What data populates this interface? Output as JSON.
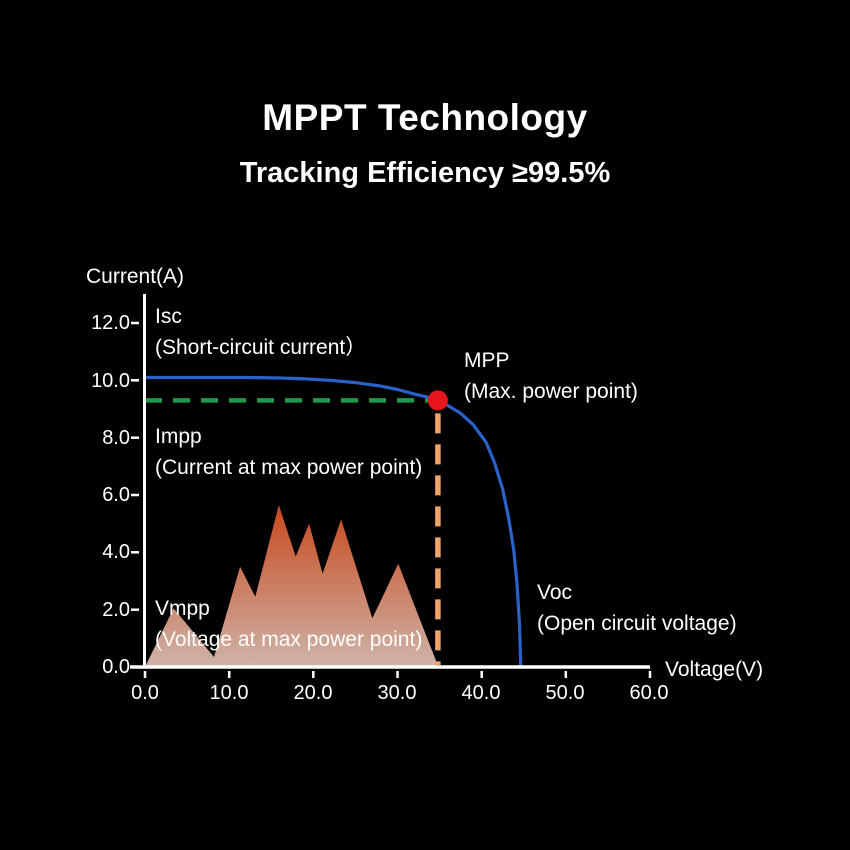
{
  "title": "MPPT Technology",
  "subtitle": "Tracking Efficiency ≥99.5%",
  "colors": {
    "background": "#000000",
    "text": "#ffffff",
    "axis": "#ffffff",
    "iv_curve": "#2b62c9",
    "impp_line": "#23984d",
    "vmpp_line": "#f2a465",
    "mpp_dot": "#e8151d",
    "mountain_top": "#c8481c",
    "mountain_bottom": "#ceb4a8"
  },
  "chart_data": {
    "type": "line",
    "title": "Solar module I-V curve with maximum power point",
    "xlabel": "Voltage(V)",
    "ylabel": "Current(A)",
    "xlim": [
      0,
      60
    ],
    "ylim": [
      0,
      12
    ],
    "x_ticks": [
      "0.0",
      "10.0",
      "20.0",
      "30.0",
      "40.0",
      "50.0",
      "60.0"
    ],
    "y_ticks": [
      "0.0",
      "2.0",
      "4.0",
      "6.0",
      "8.0",
      "10.0",
      "12.0"
    ],
    "grid": false,
    "legend": "none",
    "markers": {
      "isc": 10.1,
      "impp": 9.3,
      "vmpp": 34.8,
      "voc": 44.5,
      "mpp": [
        34.8,
        9.3
      ]
    },
    "series": [
      {
        "name": "iv_curve",
        "points": [
          [
            0,
            10.1
          ],
          [
            4,
            10.1
          ],
          [
            8,
            10.1
          ],
          [
            12,
            10.1
          ],
          [
            16,
            10.08
          ],
          [
            19,
            10.05
          ],
          [
            22,
            10.0
          ],
          [
            25,
            9.92
          ],
          [
            28,
            9.8
          ],
          [
            30,
            9.68
          ],
          [
            32,
            9.52
          ],
          [
            33.5,
            9.42
          ],
          [
            34.8,
            9.3
          ],
          [
            36,
            9.12
          ],
          [
            37.5,
            8.85
          ],
          [
            39,
            8.45
          ],
          [
            40.5,
            7.85
          ],
          [
            41.5,
            7.15
          ],
          [
            42.5,
            6.2
          ],
          [
            43.2,
            5.2
          ],
          [
            43.8,
            4.1
          ],
          [
            44.2,
            2.9
          ],
          [
            44.5,
            1.5
          ],
          [
            44.65,
            0
          ]
        ]
      },
      {
        "name": "power_output_mountain",
        "points": [
          [
            0,
            0
          ],
          [
            3.4,
            2.05
          ],
          [
            8.2,
            0.35
          ],
          [
            11.3,
            3.5
          ],
          [
            13.1,
            2.45
          ],
          [
            15.9,
            5.65
          ],
          [
            17.9,
            3.85
          ],
          [
            19.5,
            5.0
          ],
          [
            21.1,
            3.25
          ],
          [
            23.3,
            5.15
          ],
          [
            27,
            1.7
          ],
          [
            30.1,
            3.6
          ],
          [
            34.6,
            0.2
          ],
          [
            34.8,
            0
          ]
        ]
      }
    ],
    "annotations": {
      "isc": {
        "line1": "Isc",
        "line2": "(Short-circuit current）"
      },
      "mpp": {
        "line1": "MPP",
        "line2": "(Max. power point)"
      },
      "impp": {
        "line1": "Impp",
        "line2": "(Current at max power point)"
      },
      "vmpp": {
        "line1": "Vmpp",
        "line2": "(Voltage at max power point)"
      },
      "voc": {
        "line1": "Voc",
        "line2": "(Open circuit voltage)"
      }
    }
  }
}
